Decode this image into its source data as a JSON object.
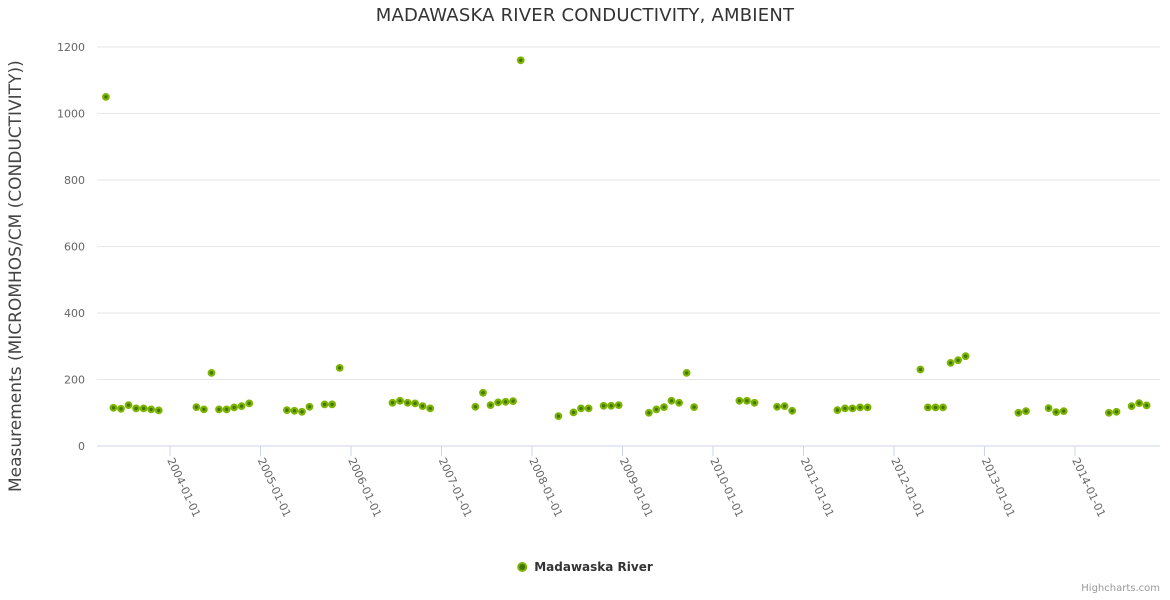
{
  "credits": "Highcharts.com",
  "chart_data": {
    "type": "scatter",
    "title": "MADAWASKA RIVER CONDUCTIVITY, AMBIENT",
    "xlabel": "",
    "ylabel": "Measurements (MICROMHOS/CM (CONDUCTIVITY))",
    "ylim": [
      0,
      1200
    ],
    "y_ticks": [
      0,
      200,
      400,
      600,
      800,
      1000,
      1200
    ],
    "x_tick_labels": [
      "2004-01-01",
      "2005-01-01",
      "2006-01-01",
      "2007-01-01",
      "2008-01-01",
      "2009-01-01",
      "2010-01-01",
      "2011-01-01",
      "2012-01-01",
      "2013-01-01",
      "2014-01-01"
    ],
    "x_range_years": [
      2003.19,
      2014.94
    ],
    "grid": "horizontal-only",
    "legend_position": "bottom-center",
    "colors": {
      "marker_fill": "#44740a",
      "marker_ring": "#7cb500",
      "gridline": "#e6e6e6",
      "axis_line": "#ccd6eb",
      "tick_label": "#666666"
    },
    "series": [
      {
        "name": "Madawaska River",
        "points": [
          [
            "2003-04",
            1050
          ],
          [
            "2003-05",
            115
          ],
          [
            "2003-06",
            112
          ],
          [
            "2003-07",
            123
          ],
          [
            "2003-08",
            113
          ],
          [
            "2003-09",
            113
          ],
          [
            "2003-10",
            110
          ],
          [
            "2003-11",
            107
          ],
          [
            "2004-04",
            117
          ],
          [
            "2004-05",
            110
          ],
          [
            "2004-06",
            220
          ],
          [
            "2004-07",
            110
          ],
          [
            "2004-08",
            110
          ],
          [
            "2004-09",
            116
          ],
          [
            "2004-10",
            120
          ],
          [
            "2004-11",
            128
          ],
          [
            "2005-04",
            108
          ],
          [
            "2005-05",
            106
          ],
          [
            "2005-06",
            103
          ],
          [
            "2005-07",
            118
          ],
          [
            "2005-09",
            125
          ],
          [
            "2005-10",
            125
          ],
          [
            "2005-11",
            235
          ],
          [
            "2006-06",
            130
          ],
          [
            "2006-07",
            136
          ],
          [
            "2006-08",
            130
          ],
          [
            "2006-09",
            128
          ],
          [
            "2006-10",
            120
          ],
          [
            "2006-11",
            113
          ],
          [
            "2007-05",
            118
          ],
          [
            "2007-06",
            160
          ],
          [
            "2007-07",
            123
          ],
          [
            "2007-08",
            131
          ],
          [
            "2007-09",
            133
          ],
          [
            "2007-10",
            135
          ],
          [
            "2007-11",
            1160
          ],
          [
            "2008-04",
            90
          ],
          [
            "2008-06",
            101
          ],
          [
            "2008-07",
            113
          ],
          [
            "2008-08",
            113
          ],
          [
            "2008-10",
            121
          ],
          [
            "2008-11",
            121
          ],
          [
            "2008-12",
            123
          ],
          [
            "2009-04",
            100
          ],
          [
            "2009-05",
            110
          ],
          [
            "2009-06",
            117
          ],
          [
            "2009-07",
            136
          ],
          [
            "2009-08",
            130
          ],
          [
            "2009-09",
            220
          ],
          [
            "2009-10",
            117
          ],
          [
            "2010-04",
            136
          ],
          [
            "2010-05",
            136
          ],
          [
            "2010-06",
            130
          ],
          [
            "2010-09",
            118
          ],
          [
            "2010-10",
            120
          ],
          [
            "2010-11",
            106
          ],
          [
            "2011-05",
            108
          ],
          [
            "2011-06",
            113
          ],
          [
            "2011-07",
            113
          ],
          [
            "2011-08",
            116
          ],
          [
            "2011-09",
            116
          ],
          [
            "2012-04",
            230
          ],
          [
            "2012-05",
            116
          ],
          [
            "2012-06",
            116
          ],
          [
            "2012-07",
            116
          ],
          [
            "2012-08",
            250
          ],
          [
            "2012-09",
            258
          ],
          [
            "2012-10",
            270
          ],
          [
            "2013-05",
            100
          ],
          [
            "2013-06",
            105
          ],
          [
            "2013-09",
            114
          ],
          [
            "2013-10",
            102
          ],
          [
            "2013-11",
            105
          ],
          [
            "2014-05",
            100
          ],
          [
            "2014-06",
            103
          ],
          [
            "2014-08",
            120
          ],
          [
            "2014-09",
            129
          ],
          [
            "2014-10",
            122
          ]
        ]
      }
    ]
  }
}
